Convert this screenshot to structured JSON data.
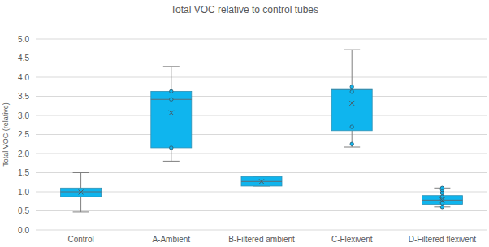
{
  "chart_data": {
    "type": "box",
    "title": "Total VOC relative to control tubes",
    "y_label": "Total VOC (relative)",
    "categories": [
      "Control",
      "A-Ambient",
      "B-Filtered ambient",
      "C-Flexivent",
      "D-Filtered flexivent"
    ],
    "boxes": [
      {
        "min": 0.47,
        "q1": 0.87,
        "median": 1.0,
        "q3": 1.1,
        "max": 1.5,
        "mean": 0.99,
        "points": []
      },
      {
        "min": 1.8,
        "q1": 2.15,
        "median": 3.42,
        "q3": 3.63,
        "max": 4.28,
        "mean": 3.07,
        "points": [
          3.63,
          3.42,
          2.15
        ]
      },
      {
        "min": 1.15,
        "q1": 1.15,
        "median": 1.27,
        "q3": 1.4,
        "max": 1.4,
        "mean": 1.27,
        "points": []
      },
      {
        "min": 2.17,
        "q1": 2.6,
        "median": 3.68,
        "q3": 3.7,
        "max": 4.72,
        "mean": 3.32,
        "points": [
          3.75,
          3.62,
          2.7,
          2.25
        ]
      },
      {
        "min": 0.6,
        "q1": 0.67,
        "median": 0.78,
        "q3": 0.9,
        "max": 1.1,
        "mean": 0.78,
        "points": [
          0.6,
          0.7,
          0.8,
          0.87,
          0.97,
          1.05,
          1.1
        ]
      }
    ],
    "color": "#0fb5ee",
    "ylim": [
      0,
      5
    ],
    "yticks": [
      {
        "value": 0,
        "label": "0.0"
      },
      {
        "value": 0.5,
        "label": "0.5"
      },
      {
        "value": 1,
        "label": "1.0"
      },
      {
        "value": 1.5,
        "label": "1.5"
      },
      {
        "value": 2,
        "label": "2.0"
      },
      {
        "value": 2.5,
        "label": "2.5"
      },
      {
        "value": 3,
        "label": "3.0"
      },
      {
        "value": 3.5,
        "label": "3.5"
      },
      {
        "value": 4,
        "label": "4.0"
      },
      {
        "value": 4.5,
        "label": "4.5"
      },
      {
        "value": 5,
        "label": "5.0"
      }
    ],
    "grid": true
  }
}
